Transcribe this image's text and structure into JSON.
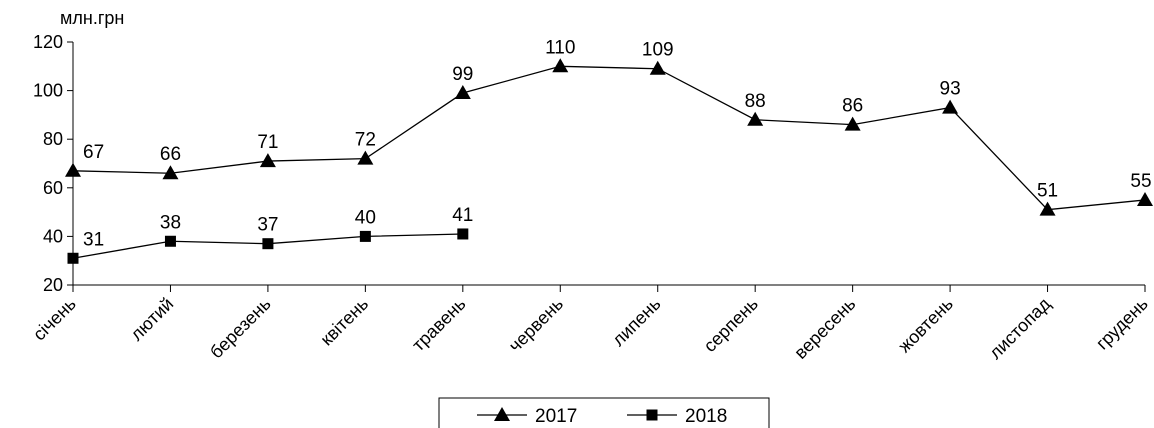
{
  "chart_data": {
    "type": "line",
    "title": "",
    "xlabel": "",
    "ylabel": "млн.грн",
    "ylim": [
      20,
      120
    ],
    "yticks": [
      20,
      40,
      60,
      80,
      100,
      120
    ],
    "grid": false,
    "legend_position": "bottom",
    "categories": [
      "січень",
      "лютий",
      "березень",
      "квітень",
      "травень",
      "червень",
      "липень",
      "серпень",
      "вересень",
      "жовтень",
      "листопад",
      "грудень"
    ],
    "series": [
      {
        "name": "2017",
        "marker": "triangle",
        "color": "#000000",
        "values": [
          67,
          66,
          71,
          72,
          99,
          110,
          109,
          88,
          86,
          93,
          51,
          55
        ]
      },
      {
        "name": "2018",
        "marker": "square",
        "color": "#000000",
        "values": [
          31,
          38,
          37,
          40,
          41,
          null,
          null,
          null,
          null,
          null,
          null,
          null
        ]
      }
    ]
  }
}
